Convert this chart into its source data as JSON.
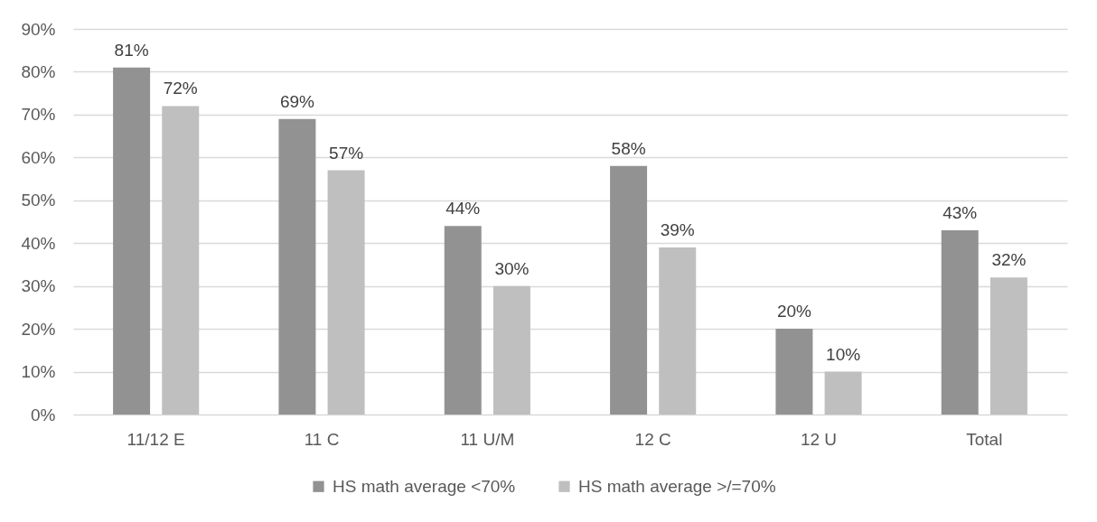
{
  "chart_data": {
    "type": "bar",
    "categories": [
      "11/12 E",
      "11 C",
      "11 U/M",
      "12 C",
      "12 U",
      "Total"
    ],
    "series": [
      {
        "name": "HS math average <70%",
        "color": "#929292",
        "values": [
          81,
          69,
          44,
          58,
          20,
          43
        ],
        "value_labels": [
          "81%",
          "69%",
          "44%",
          "58%",
          "20%",
          "43%"
        ]
      },
      {
        "name": "HS math average >/=70%",
        "color": "#bfbfbf",
        "values": [
          72,
          57,
          30,
          39,
          10,
          32
        ],
        "value_labels": [
          "72%",
          "57%",
          "30%",
          "39%",
          "10%",
          "32%"
        ]
      }
    ],
    "ylim": [
      0,
      90
    ],
    "yticks": [
      {
        "value": 0,
        "label": "0%"
      },
      {
        "value": 10,
        "label": "10%"
      },
      {
        "value": 20,
        "label": "20%"
      },
      {
        "value": 30,
        "label": "30%"
      },
      {
        "value": 40,
        "label": "40%"
      },
      {
        "value": 50,
        "label": "50%"
      },
      {
        "value": 60,
        "label": "60%"
      },
      {
        "value": 70,
        "label": "70%"
      },
      {
        "value": 80,
        "label": "80%"
      },
      {
        "value": 90,
        "label": "90%"
      }
    ],
    "grid": "y",
    "legend": "bottom"
  }
}
